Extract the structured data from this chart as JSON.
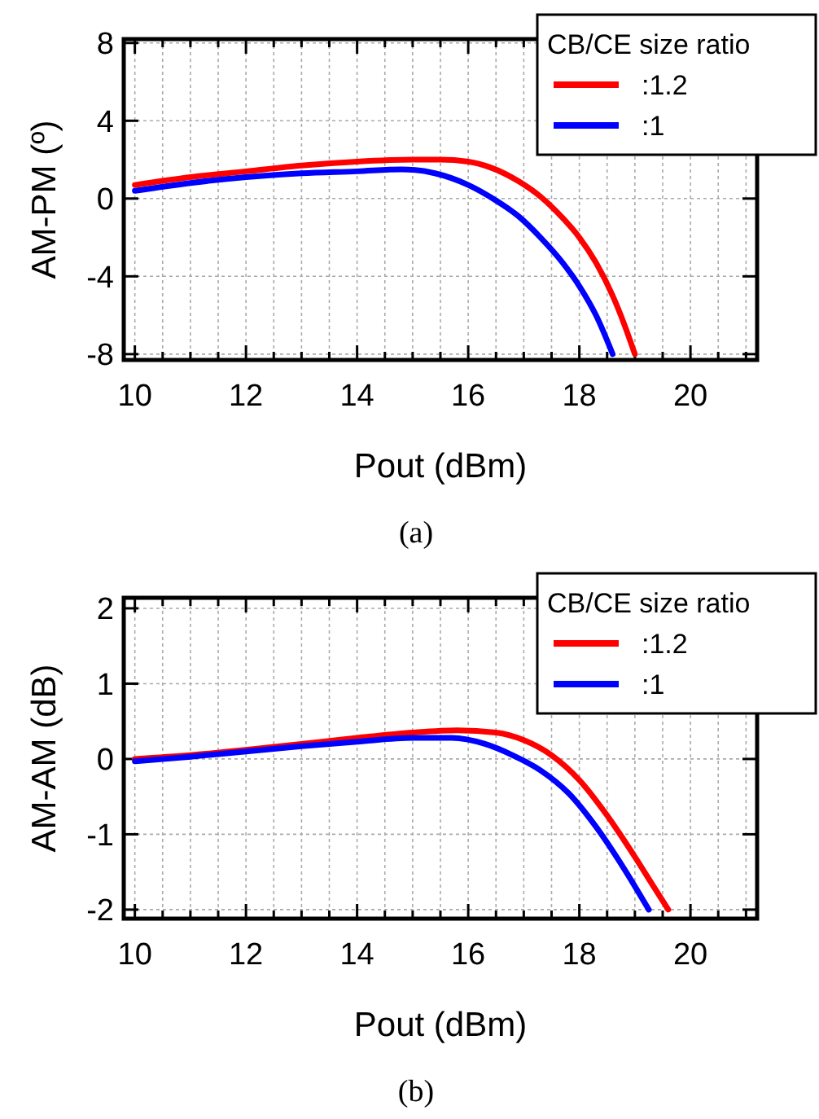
{
  "chart_data": [
    {
      "type": "line",
      "xlabel": "Pout (dBm)",
      "ylabel": "AM-PM (º)",
      "legend_title": "CB/CE size ratio",
      "legend": "top right",
      "grid": true,
      "line_style": "solid",
      "annotations": [
        "(a)"
      ],
      "xlim": [
        9.8,
        21.2
      ],
      "ylim": [
        -8.3,
        8.2
      ],
      "xticks": [
        10,
        {
          "value": 10.5,
          "label": null
        },
        {
          "value": 11,
          "label": null
        },
        {
          "value": 11.5,
          "label": null
        },
        12,
        {
          "value": 12.5,
          "label": null
        },
        {
          "value": 13,
          "label": null
        },
        {
          "value": 13.5,
          "label": null
        },
        14,
        {
          "value": 14.5,
          "label": null
        },
        {
          "value": 15,
          "label": null
        },
        {
          "value": 15.5,
          "label": null
        },
        16,
        {
          "value": 16.5,
          "label": null
        },
        {
          "value": 17,
          "label": null
        },
        {
          "value": 17.5,
          "label": null
        },
        18,
        {
          "value": 18.5,
          "label": null
        },
        {
          "value": 19,
          "label": null
        },
        {
          "value": 19.5,
          "label": null
        },
        20,
        {
          "value": 20.5,
          "label": null
        },
        {
          "value": 21,
          "label": null
        }
      ],
      "yticks": [
        -8,
        -4,
        0,
        4,
        8
      ],
      "series": [
        {
          "name": ":1.2",
          "color": "#ff0000",
          "x": [
            10,
            11,
            12,
            13,
            14,
            15,
            15.5,
            16,
            16.4,
            16.9,
            17.3,
            17.7,
            18,
            18.3,
            18.6,
            18.8,
            19
          ],
          "values": [
            0.7,
            1.1,
            1.4,
            1.7,
            1.9,
            2,
            2,
            1.9,
            1.6,
            0.9,
            0.1,
            -1,
            -2,
            -3.3,
            -5,
            -6.4,
            -8
          ]
        },
        {
          "name": ":1",
          "color": "#0000ff",
          "x": [
            10,
            11,
            12,
            13,
            14,
            14.8,
            15.4,
            16,
            16.5,
            16.9,
            17.3,
            17.7,
            18,
            18.3,
            18.6
          ],
          "values": [
            0.4,
            0.8,
            1.1,
            1.3,
            1.4,
            1.5,
            1.3,
            0.7,
            -0.1,
            -0.9,
            -2,
            -3.3,
            -4.5,
            -6,
            -8
          ]
        }
      ]
    },
    {
      "type": "line",
      "xlabel": "Pout (dBm)",
      "ylabel": "AM-AM (dB)",
      "legend_title": "CB/CE size ratio",
      "legend": "top right",
      "grid": true,
      "line_style": "solid",
      "annotations": [
        "(b)"
      ],
      "xlim": [
        9.8,
        21.2
      ],
      "ylim": [
        -2.12,
        2.14
      ],
      "xticks": [
        10,
        {
          "value": 10.5,
          "label": null
        },
        {
          "value": 11,
          "label": null
        },
        {
          "value": 11.5,
          "label": null
        },
        12,
        {
          "value": 12.5,
          "label": null
        },
        {
          "value": 13,
          "label": null
        },
        {
          "value": 13.5,
          "label": null
        },
        14,
        {
          "value": 14.5,
          "label": null
        },
        {
          "value": 15,
          "label": null
        },
        {
          "value": 15.5,
          "label": null
        },
        16,
        {
          "value": 16.5,
          "label": null
        },
        {
          "value": 17,
          "label": null
        },
        {
          "value": 17.5,
          "label": null
        },
        18,
        {
          "value": 18.5,
          "label": null
        },
        {
          "value": 19,
          "label": null
        },
        {
          "value": 19.5,
          "label": null
        },
        20,
        {
          "value": 20.5,
          "label": null
        },
        {
          "value": 21,
          "label": null
        }
      ],
      "yticks": [
        -2,
        -1,
        0,
        1,
        2
      ],
      "series": [
        {
          "name": ":1.2",
          "color": "#ff0000",
          "x": [
            10,
            11,
            12,
            13,
            14,
            15,
            15.8,
            16.5,
            17,
            17.5,
            18,
            18.5,
            19,
            19.3,
            19.6
          ],
          "values": [
            0,
            0.05,
            0.12,
            0.2,
            0.28,
            0.35,
            0.38,
            0.35,
            0.25,
            0.05,
            -0.28,
            -0.75,
            -1.3,
            -1.65,
            -2
          ]
        },
        {
          "name": ":1",
          "color": "#0000ff",
          "x": [
            10,
            11,
            12,
            13,
            14,
            15,
            15.7,
            16.3,
            16.8,
            17.3,
            17.8,
            18.3,
            18.8,
            19.25
          ],
          "values": [
            -0.03,
            0.03,
            0.1,
            0.17,
            0.23,
            0.28,
            0.28,
            0.2,
            0.05,
            -0.15,
            -0.45,
            -0.9,
            -1.45,
            -2
          ]
        }
      ]
    }
  ]
}
